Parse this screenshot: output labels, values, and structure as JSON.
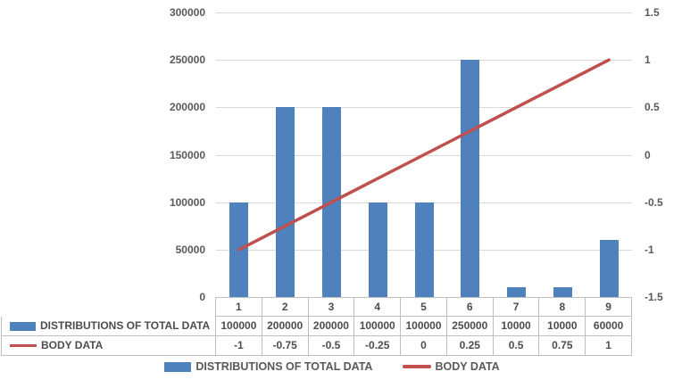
{
  "chart_data": {
    "type": "combo-bar-line",
    "title": "",
    "categories": [
      "1",
      "2",
      "3",
      "4",
      "5",
      "6",
      "7",
      "8",
      "9"
    ],
    "series": [
      {
        "name": "DISTRIBUTIONS OF TOTAL DATA",
        "type": "bar",
        "axis": "left",
        "color": "#4F81BD",
        "values": [
          100000,
          200000,
          200000,
          100000,
          100000,
          250000,
          10000,
          10000,
          60000
        ],
        "labels": [
          "100000",
          "200000",
          "200000",
          "100000",
          "100000",
          "250000",
          "10000",
          "10000",
          "60000"
        ]
      },
      {
        "name": "BODY DATA",
        "type": "line",
        "axis": "right",
        "color": "#C0504D",
        "values": [
          -1,
          -0.75,
          -0.5,
          -0.25,
          0,
          0.25,
          0.5,
          0.75,
          1
        ],
        "labels": [
          "-1",
          "-0.75",
          "-0.5",
          "-0.25",
          "0",
          "0.25",
          "0.5",
          "0.75",
          "1"
        ]
      }
    ],
    "left_axis": {
      "min": 0,
      "max": 300000,
      "tick_labels_top_to_bottom": [
        "300000",
        "250000",
        "200000",
        "150000",
        "100000",
        "50000",
        "0"
      ]
    },
    "right_axis": {
      "min": -1.5,
      "max": 1.5,
      "tick_labels_top_to_bottom": [
        "1.5",
        "1",
        "0.5",
        "0",
        "-0.5",
        "-1",
        "-1.5"
      ]
    },
    "legend": {
      "position": "bottom",
      "entries": [
        "DISTRIBUTIONS OF TOTAL DATA",
        "BODY DATA"
      ]
    },
    "data_table_shown": true,
    "grid": "horizontal",
    "gridline_color": "#D9D9D9",
    "table_border_color": "#BFBFBF"
  }
}
